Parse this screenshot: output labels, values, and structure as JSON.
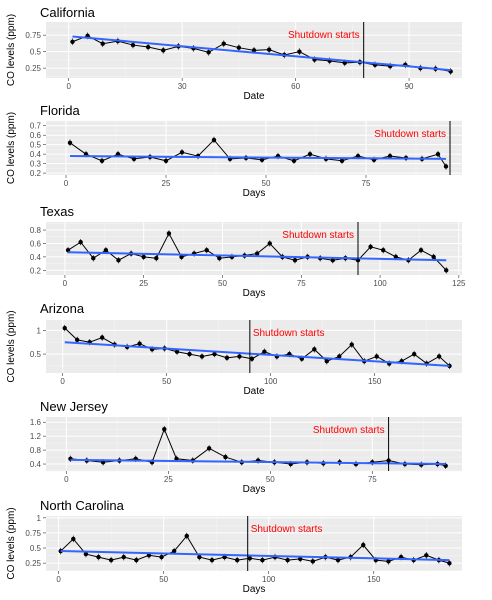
{
  "chart_data": [
    {
      "type": "line",
      "title": "California",
      "xlabel": "Date",
      "ylabel": "CO levels (ppm)",
      "xlim": [
        -6,
        104
      ],
      "ylim": [
        0.1,
        0.95
      ],
      "xticks": [
        0,
        30,
        60,
        90
      ],
      "yticks": [
        0.25,
        0.5,
        0.75
      ],
      "shutdown_x": 78,
      "annotation": "Shutdown starts",
      "trend": [
        [
          1,
          0.73
        ],
        [
          101,
          0.22
        ]
      ],
      "series": [
        {
          "x": [
            1,
            5,
            9,
            13,
            17,
            21,
            25,
            29,
            33,
            37,
            41,
            45,
            49,
            53,
            57,
            61,
            65,
            69,
            73,
            77,
            81,
            85,
            89,
            93,
            97,
            101
          ],
          "y": [
            0.65,
            0.74,
            0.62,
            0.66,
            0.6,
            0.57,
            0.52,
            0.58,
            0.55,
            0.49,
            0.62,
            0.56,
            0.52,
            0.53,
            0.45,
            0.5,
            0.38,
            0.36,
            0.33,
            0.34,
            0.3,
            0.28,
            0.3,
            0.25,
            0.24,
            0.2
          ]
        }
      ]
    },
    {
      "type": "line",
      "title": "Florida",
      "xlabel": "Days",
      "ylabel": "CO levels (ppm)",
      "xlim": [
        -5,
        99
      ],
      "ylim": [
        0.18,
        0.75
      ],
      "xticks": [
        0,
        25,
        50,
        75
      ],
      "yticks": [
        0.2,
        0.3,
        0.4,
        0.5,
        0.6,
        0.7
      ],
      "shutdown_x": 96,
      "annotation": "Shutdown starts",
      "trend": [
        [
          1,
          0.38
        ],
        [
          95,
          0.35
        ]
      ],
      "series": [
        {
          "x": [
            1,
            5,
            9,
            13,
            17,
            21,
            25,
            29,
            33,
            37,
            41,
            45,
            49,
            53,
            57,
            61,
            65,
            69,
            73,
            77,
            81,
            85,
            89,
            93,
            95
          ],
          "y": [
            0.52,
            0.4,
            0.33,
            0.4,
            0.35,
            0.37,
            0.33,
            0.42,
            0.38,
            0.55,
            0.35,
            0.36,
            0.34,
            0.38,
            0.33,
            0.4,
            0.35,
            0.33,
            0.38,
            0.34,
            0.38,
            0.36,
            0.35,
            0.4,
            0.27
          ]
        }
      ]
    },
    {
      "type": "line",
      "title": "Texas",
      "xlabel": "Days",
      "ylabel": "",
      "xlim": [
        -6,
        126
      ],
      "ylim": [
        0.13,
        0.92
      ],
      "xticks": [
        0,
        25,
        50,
        75,
        100,
        125
      ],
      "yticks": [
        0.2,
        0.4,
        0.6,
        0.8
      ],
      "shutdown_x": 93,
      "annotation": "Shutdown starts",
      "trend": [
        [
          1,
          0.47
        ],
        [
          121,
          0.35
        ]
      ],
      "series": [
        {
          "x": [
            1,
            5,
            9,
            13,
            17,
            21,
            25,
            29,
            33,
            37,
            41,
            45,
            49,
            53,
            57,
            61,
            65,
            69,
            73,
            77,
            81,
            85,
            89,
            93,
            97,
            101,
            105,
            109,
            113,
            117,
            121
          ],
          "y": [
            0.5,
            0.62,
            0.38,
            0.5,
            0.35,
            0.45,
            0.4,
            0.38,
            0.75,
            0.4,
            0.45,
            0.5,
            0.38,
            0.4,
            0.42,
            0.45,
            0.6,
            0.4,
            0.35,
            0.4,
            0.38,
            0.35,
            0.38,
            0.35,
            0.55,
            0.5,
            0.4,
            0.35,
            0.5,
            0.4,
            0.2
          ]
        }
      ]
    },
    {
      "type": "line",
      "title": "Arizona",
      "xlabel": "Date",
      "ylabel": "CO levels (ppm)",
      "xlim": [
        -8,
        192
      ],
      "ylim": [
        0.1,
        1.22
      ],
      "xticks": [
        0,
        50,
        100,
        150
      ],
      "yticks": [
        0.5,
        1.0
      ],
      "shutdown_x": 90,
      "annotation": "Shutdown starts",
      "trend": [
        [
          1,
          0.75
        ],
        [
          186,
          0.25
        ]
      ],
      "series": [
        {
          "x": [
            1,
            7,
            13,
            19,
            25,
            31,
            37,
            43,
            49,
            55,
            61,
            67,
            73,
            79,
            85,
            91,
            97,
            103,
            109,
            115,
            121,
            127,
            133,
            139,
            145,
            151,
            157,
            163,
            169,
            175,
            181,
            186
          ],
          "y": [
            1.05,
            0.8,
            0.75,
            0.85,
            0.7,
            0.65,
            0.72,
            0.6,
            0.62,
            0.55,
            0.5,
            0.45,
            0.5,
            0.42,
            0.45,
            0.4,
            0.55,
            0.45,
            0.5,
            0.4,
            0.6,
            0.35,
            0.45,
            0.7,
            0.35,
            0.45,
            0.3,
            0.35,
            0.5,
            0.3,
            0.45,
            0.25
          ]
        }
      ]
    },
    {
      "type": "line",
      "title": "New Jersey",
      "xlabel": "Days",
      "ylabel": "",
      "xlim": [
        -5,
        97
      ],
      "ylim": [
        0.2,
        1.75
      ],
      "xticks": [
        0,
        25,
        50,
        75
      ],
      "yticks": [
        0.4,
        0.8,
        1.2,
        1.6
      ],
      "shutdown_x": 79,
      "annotation": "Shutdown starts",
      "trend": [
        [
          1,
          0.52
        ],
        [
          93,
          0.4
        ]
      ],
      "series": [
        {
          "x": [
            1,
            5,
            9,
            13,
            17,
            21,
            24,
            27,
            31,
            35,
            39,
            43,
            47,
            51,
            55,
            59,
            63,
            67,
            71,
            75,
            79,
            83,
            87,
            91,
            93
          ],
          "y": [
            0.55,
            0.5,
            0.45,
            0.5,
            0.55,
            0.45,
            1.4,
            0.55,
            0.5,
            0.85,
            0.6,
            0.45,
            0.5,
            0.45,
            0.4,
            0.45,
            0.42,
            0.45,
            0.4,
            0.45,
            0.5,
            0.4,
            0.38,
            0.4,
            0.35
          ]
        }
      ]
    },
    {
      "type": "line",
      "title": "North Carolina",
      "xlabel": "Days",
      "ylabel": "CO levels (ppm)",
      "xlim": [
        -6,
        192
      ],
      "ylim": [
        0.12,
        1.03
      ],
      "xticks": [
        0,
        50,
        100,
        150
      ],
      "yticks": [
        0.25,
        0.5,
        0.75,
        1.0
      ],
      "shutdown_x": 90,
      "annotation": "Shutdown starts",
      "trend": [
        [
          1,
          0.45
        ],
        [
          186,
          0.3
        ]
      ],
      "series": [
        {
          "x": [
            1,
            7,
            13,
            19,
            25,
            31,
            37,
            43,
            49,
            55,
            61,
            67,
            73,
            79,
            85,
            91,
            97,
            103,
            109,
            115,
            121,
            127,
            133,
            139,
            145,
            151,
            157,
            163,
            169,
            175,
            181,
            186
          ],
          "y": [
            0.45,
            0.65,
            0.4,
            0.35,
            0.3,
            0.35,
            0.3,
            0.38,
            0.35,
            0.45,
            0.7,
            0.35,
            0.3,
            0.35,
            0.3,
            0.33,
            0.3,
            0.35,
            0.3,
            0.32,
            0.28,
            0.35,
            0.3,
            0.35,
            0.55,
            0.3,
            0.28,
            0.35,
            0.3,
            0.38,
            0.3,
            0.25
          ]
        }
      ]
    }
  ]
}
